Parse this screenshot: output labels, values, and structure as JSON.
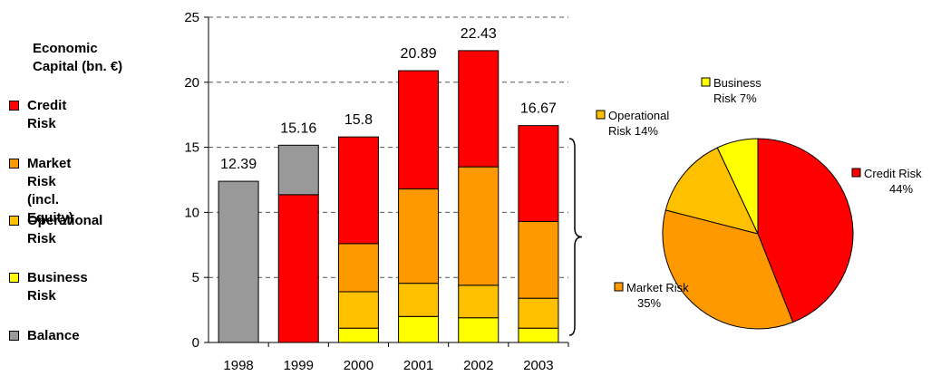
{
  "chart_data": [
    {
      "type": "bar",
      "stacked": true,
      "title": "",
      "ylabel": "",
      "ylim": [
        0,
        25
      ],
      "yticks": [
        0,
        5,
        10,
        15,
        20,
        25
      ],
      "grid": "dashed-horizontal",
      "categories": [
        "1998",
        "1999",
        "2000",
        "2001",
        "2002",
        "2003"
      ],
      "series": [
        {
          "name": "Business Risk",
          "color": "#ffff00",
          "values": [
            0,
            0,
            1.1,
            2.0,
            1.9,
            1.1
          ]
        },
        {
          "name": "Operational Risk",
          "color": "#ffc000",
          "values": [
            0,
            0,
            2.8,
            2.55,
            2.5,
            2.3
          ]
        },
        {
          "name": "Market Risk (incl. Equity)",
          "color": "#ff9900",
          "values": [
            0,
            0,
            3.7,
            7.25,
            9.1,
            5.9
          ]
        },
        {
          "name": "Credit Risk",
          "color": "#ff0000",
          "values": [
            0,
            11.36,
            8.2,
            9.09,
            8.93,
            7.37
          ]
        },
        {
          "name": "Balance",
          "color": "#999999",
          "values": [
            12.39,
            3.8,
            0,
            0,
            0,
            0
          ]
        }
      ],
      "totals": [
        "12.39",
        "15.16",
        "15.8",
        "20.89",
        "22.43",
        "16.67"
      ]
    },
    {
      "type": "pie",
      "slices": [
        {
          "label": "Credit Risk",
          "pct_label": "44%",
          "value": 44,
          "color": "#ff0000"
        },
        {
          "label": "Market Risk",
          "pct_label": "35%",
          "value": 35,
          "color": "#ff9900"
        },
        {
          "label": "Operational Risk",
          "pct_label": "14%",
          "value": 14,
          "color": "#ffc000"
        },
        {
          "label": "Business Risk",
          "pct_label": "7%",
          "value": 7,
          "color": "#ffff00"
        }
      ]
    }
  ],
  "legend": {
    "title": "Economic\nCapital (bn. €)",
    "items": [
      {
        "label": "Credit Risk",
        "color": "#ff0000"
      },
      {
        "label": "Market Risk\n(incl. Equity)",
        "color": "#ff9900"
      },
      {
        "label": "Operational Risk",
        "color": "#ffc000"
      },
      {
        "label": "Business Risk",
        "color": "#ffff00"
      },
      {
        "label": "Balance",
        "color": "#999999"
      }
    ]
  }
}
